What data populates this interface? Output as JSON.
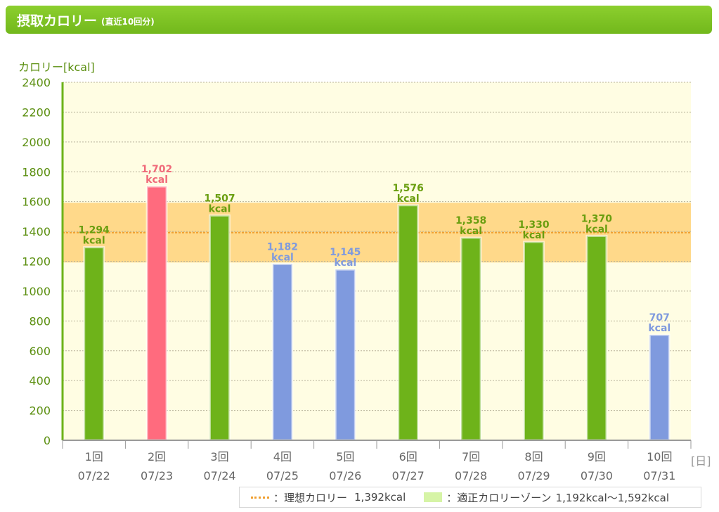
{
  "header": {
    "title": "摂取カロリー",
    "subtitle": "(直近10回分)"
  },
  "colors": {
    "header": "#7cc224",
    "normal_bar": "#6eb31a",
    "high_bar": "#ff6b7e",
    "low_bar": "#7f9ade",
    "zone": "#ffd98a",
    "background": "#fffde3",
    "ideal_line": "#f0a030"
  },
  "chart_data": {
    "type": "bar",
    "ylabel": "カロリー[kcal]",
    "xunit": "[日]",
    "ylim": [
      0,
      2400
    ],
    "yticks": [
      0,
      200,
      400,
      600,
      800,
      1000,
      1200,
      1400,
      1600,
      1800,
      2000,
      2200,
      2400
    ],
    "grid": true,
    "categories": [
      "1回",
      "2回",
      "3回",
      "4回",
      "5回",
      "6回",
      "7回",
      "8回",
      "9回",
      "10回"
    ],
    "dates": [
      "07/22",
      "07/23",
      "07/24",
      "07/25",
      "07/26",
      "07/27",
      "07/28",
      "07/29",
      "07/30",
      "07/31"
    ],
    "values": [
      1294,
      1702,
      1507,
      1182,
      1145,
      1576,
      1358,
      1330,
      1370,
      707
    ],
    "value_labels": [
      "1,294",
      "1,702",
      "1,507",
      "1,182",
      "1,145",
      "1,576",
      "1,358",
      "1,330",
      "1,370",
      "707"
    ],
    "value_unit": "kcal",
    "ideal": 1392,
    "zone": [
      1192,
      1592
    ]
  },
  "legend": {
    "ideal_label": "：理想カロリー",
    "ideal_value": "1,392kcal",
    "zone_label": "：適正カロリーゾーン",
    "zone_value": "1,192kcal～1,592kcal",
    "placement": "bottom-right"
  }
}
